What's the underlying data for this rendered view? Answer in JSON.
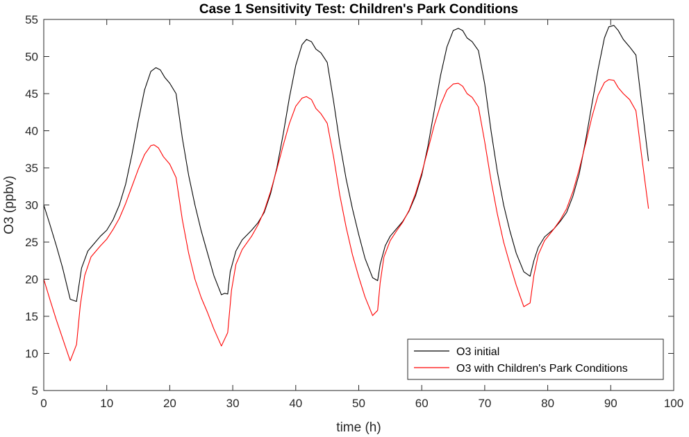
{
  "chart_data": {
    "type": "line",
    "title": "Case 1 Sensitivity Test: Children's Park Conditions",
    "xlabel": "time (h)",
    "ylabel": "O3 (ppbv)",
    "xlim": [
      0,
      100
    ],
    "ylim": [
      5,
      55
    ],
    "xticks": [
      0,
      10,
      20,
      30,
      40,
      50,
      60,
      70,
      80,
      90,
      100
    ],
    "yticks": [
      5,
      10,
      15,
      20,
      25,
      30,
      35,
      40,
      45,
      50,
      55
    ],
    "grid": false,
    "legend_position": "bottom-right",
    "series": [
      {
        "name": "O3 initial",
        "color": "#000000",
        "points": [
          [
            0,
            30
          ],
          [
            1,
            27.3
          ],
          [
            2,
            24.5
          ],
          [
            3,
            21.5
          ],
          [
            4.2,
            17.3
          ],
          [
            5.2,
            17
          ],
          [
            6,
            21.5
          ],
          [
            7,
            23.8
          ],
          [
            8,
            24.8
          ],
          [
            9,
            25.8
          ],
          [
            10,
            26.6
          ],
          [
            11,
            28
          ],
          [
            12,
            30
          ],
          [
            13,
            32.8
          ],
          [
            14,
            36.8
          ],
          [
            15,
            41.3
          ],
          [
            16,
            45.5
          ],
          [
            17,
            48
          ],
          [
            17.8,
            48.5
          ],
          [
            18.5,
            48.2
          ],
          [
            19.2,
            47.2
          ],
          [
            20,
            46.4
          ],
          [
            21,
            45
          ],
          [
            22,
            39
          ],
          [
            23,
            34
          ],
          [
            24,
            30
          ],
          [
            25,
            26.5
          ],
          [
            26,
            23.5
          ],
          [
            27,
            20.5
          ],
          [
            28.2,
            17.9
          ],
          [
            28.7,
            18.1
          ],
          [
            29.2,
            18
          ],
          [
            29.6,
            21
          ],
          [
            30.5,
            23.8
          ],
          [
            31.5,
            25.3
          ],
          [
            33,
            26.6
          ],
          [
            34,
            27.6
          ],
          [
            35,
            29
          ],
          [
            36,
            31.5
          ],
          [
            37,
            35
          ],
          [
            38,
            39.5
          ],
          [
            39,
            44.5
          ],
          [
            40,
            48.8
          ],
          [
            41,
            51.6
          ],
          [
            41.7,
            52.3
          ],
          [
            42.5,
            52
          ],
          [
            43.2,
            51
          ],
          [
            44,
            50.5
          ],
          [
            45,
            49.2
          ],
          [
            46,
            44
          ],
          [
            47,
            38.3
          ],
          [
            48,
            33.5
          ],
          [
            49,
            29.5
          ],
          [
            50,
            26
          ],
          [
            51,
            22.8
          ],
          [
            52.2,
            20.2
          ],
          [
            53,
            19.8
          ],
          [
            53.4,
            22
          ],
          [
            54.2,
            24.5
          ],
          [
            55,
            25.8
          ],
          [
            56,
            26.8
          ],
          [
            57,
            27.8
          ],
          [
            58,
            29.2
          ],
          [
            59,
            31.2
          ],
          [
            60,
            34
          ],
          [
            61,
            38
          ],
          [
            62,
            42.8
          ],
          [
            63,
            47.5
          ],
          [
            64,
            51.3
          ],
          [
            65,
            53.5
          ],
          [
            65.8,
            53.8
          ],
          [
            66.5,
            53.5
          ],
          [
            67.2,
            52.5
          ],
          [
            68,
            52
          ],
          [
            69,
            50.8
          ],
          [
            70,
            46.3
          ],
          [
            71,
            40
          ],
          [
            72,
            34.5
          ],
          [
            73,
            30
          ],
          [
            74,
            26.5
          ],
          [
            75,
            23.5
          ],
          [
            76.2,
            21
          ],
          [
            77.2,
            20.4
          ],
          [
            77.8,
            22.5
          ],
          [
            78.5,
            24.3
          ],
          [
            79.5,
            25.7
          ],
          [
            81,
            26.8
          ],
          [
            82,
            27.8
          ],
          [
            83,
            29
          ],
          [
            84,
            31.2
          ],
          [
            85,
            34.2
          ],
          [
            86,
            38.6
          ],
          [
            87,
            43.5
          ],
          [
            88,
            48.3
          ],
          [
            89,
            52.5
          ],
          [
            89.7,
            54
          ],
          [
            90.5,
            54.2
          ],
          [
            91.2,
            53.5
          ],
          [
            92,
            52.3
          ],
          [
            93,
            51.3
          ],
          [
            94,
            50.2
          ],
          [
            95,
            43
          ],
          [
            96,
            35.9
          ]
        ]
      },
      {
        "name": "O3 with Children's Park Conditions",
        "color": "#ff0000",
        "points": [
          [
            0,
            20
          ],
          [
            1,
            17.2
          ],
          [
            2,
            14.5
          ],
          [
            3,
            12
          ],
          [
            4.2,
            9
          ],
          [
            5.2,
            11.2
          ],
          [
            5.8,
            16.5
          ],
          [
            6.5,
            20.5
          ],
          [
            7.5,
            23
          ],
          [
            9,
            24.5
          ],
          [
            10,
            25.4
          ],
          [
            11,
            26.7
          ],
          [
            12,
            28.2
          ],
          [
            13,
            30.2
          ],
          [
            14,
            32.5
          ],
          [
            15,
            34.8
          ],
          [
            16,
            36.8
          ],
          [
            17,
            38
          ],
          [
            17.5,
            38.1
          ],
          [
            18.2,
            37.7
          ],
          [
            19,
            36.5
          ],
          [
            20,
            35.5
          ],
          [
            21,
            33.7
          ],
          [
            22,
            28
          ],
          [
            23,
            23.5
          ],
          [
            24,
            20
          ],
          [
            25,
            17.5
          ],
          [
            26,
            15.5
          ],
          [
            27,
            13.3
          ],
          [
            28.2,
            11
          ],
          [
            29.2,
            12.8
          ],
          [
            29.8,
            18.5
          ],
          [
            30.5,
            22
          ],
          [
            31.5,
            24
          ],
          [
            33,
            25.8
          ],
          [
            34,
            27.3
          ],
          [
            35,
            29.2
          ],
          [
            36,
            31.8
          ],
          [
            37,
            34.8
          ],
          [
            38,
            38
          ],
          [
            39,
            41
          ],
          [
            40,
            43.3
          ],
          [
            41,
            44.4
          ],
          [
            41.7,
            44.6
          ],
          [
            42.5,
            44.2
          ],
          [
            43.2,
            43
          ],
          [
            44,
            42.3
          ],
          [
            45,
            41
          ],
          [
            46,
            36.5
          ],
          [
            47,
            31.3
          ],
          [
            48,
            27
          ],
          [
            49,
            23.3
          ],
          [
            50,
            20.3
          ],
          [
            51,
            17.6
          ],
          [
            52.2,
            15.1
          ],
          [
            53,
            15.8
          ],
          [
            53.4,
            19.5
          ],
          [
            54,
            23
          ],
          [
            55,
            25.2
          ],
          [
            56,
            26.5
          ],
          [
            57,
            27.7
          ],
          [
            58,
            29.3
          ],
          [
            59,
            31.5
          ],
          [
            60,
            34.3
          ],
          [
            61,
            37.5
          ],
          [
            62,
            40.8
          ],
          [
            63,
            43.5
          ],
          [
            64,
            45.5
          ],
          [
            65,
            46.3
          ],
          [
            65.8,
            46.4
          ],
          [
            66.5,
            46
          ],
          [
            67.2,
            45
          ],
          [
            68,
            44.5
          ],
          [
            69,
            43.2
          ],
          [
            70,
            38.5
          ],
          [
            71,
            33.3
          ],
          [
            72,
            28.8
          ],
          [
            73,
            25
          ],
          [
            74,
            22
          ],
          [
            75,
            19.2
          ],
          [
            76.2,
            16.3
          ],
          [
            77.2,
            16.8
          ],
          [
            77.8,
            20.5
          ],
          [
            78.5,
            23.3
          ],
          [
            79.5,
            25.2
          ],
          [
            81,
            26.8
          ],
          [
            82,
            28
          ],
          [
            83,
            29.5
          ],
          [
            84,
            31.8
          ],
          [
            85,
            34.8
          ],
          [
            86,
            38.2
          ],
          [
            87,
            41.8
          ],
          [
            88,
            44.8
          ],
          [
            89,
            46.5
          ],
          [
            89.7,
            46.9
          ],
          [
            90.5,
            46.8
          ],
          [
            91.2,
            45.8
          ],
          [
            92,
            45
          ],
          [
            93,
            44.2
          ],
          [
            94,
            42.7
          ],
          [
            95,
            36
          ],
          [
            96,
            29.5
          ]
        ]
      }
    ]
  }
}
